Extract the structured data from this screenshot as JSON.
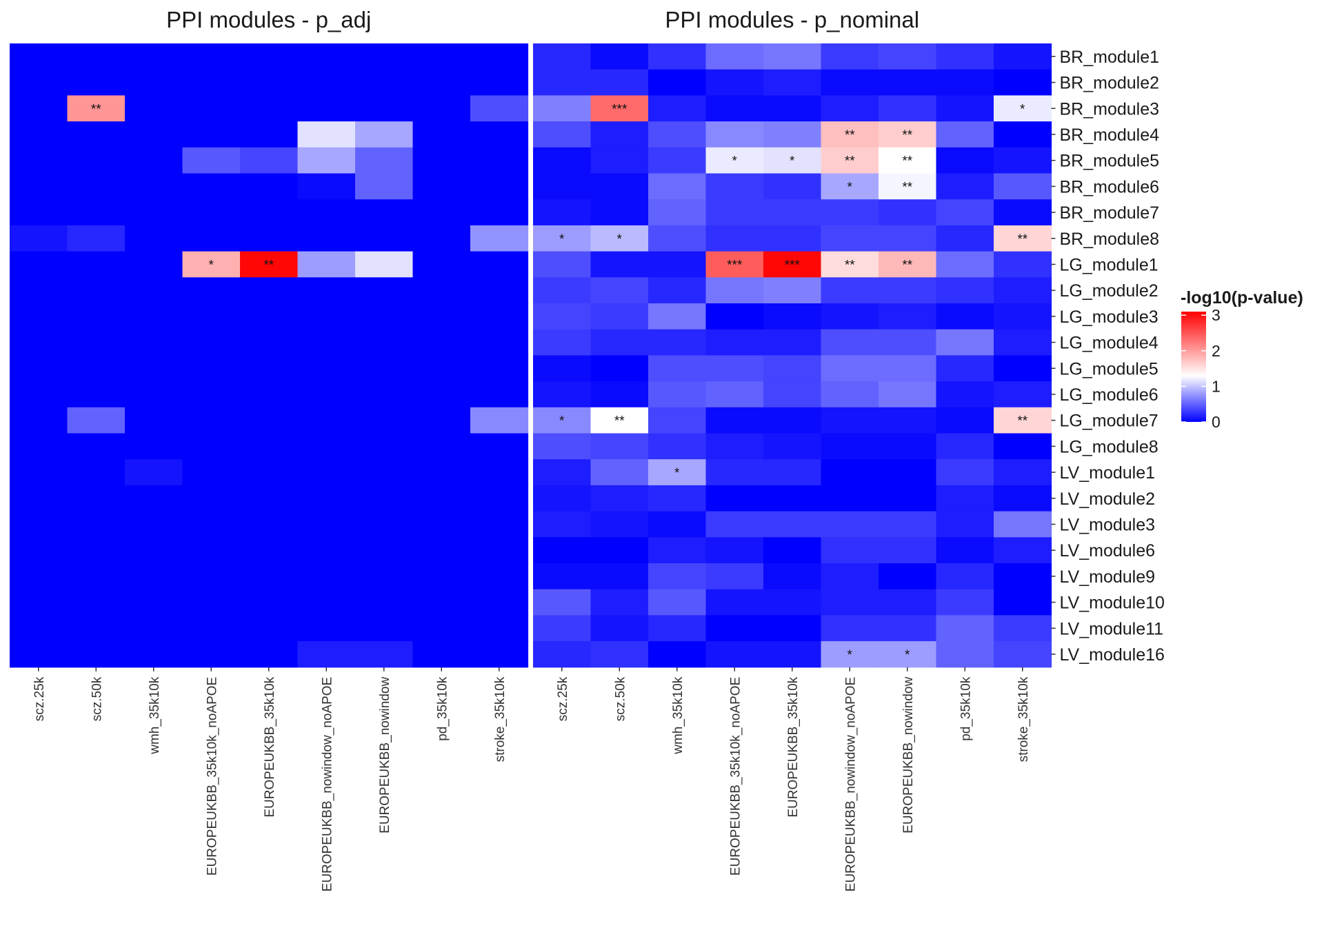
{
  "chart_data": {
    "type": "heatmap",
    "rows": [
      "BR_module1",
      "BR_module2",
      "BR_module3",
      "BR_module4",
      "BR_module5",
      "BR_module6",
      "BR_module7",
      "BR_module8",
      "LG_module1",
      "LG_module2",
      "LG_module3",
      "LG_module4",
      "LG_module5",
      "LG_module6",
      "LG_module7",
      "LG_module8",
      "LV_module1",
      "LV_module2",
      "LV_module3",
      "LV_module6",
      "LV_module9",
      "LV_module10",
      "LV_module11",
      "LV_module16"
    ],
    "columns": [
      "scz.25k",
      "scz.50k",
      "wmh_35k10k",
      "EUROPEUKBB_35k10k_noAPOE",
      "EUROPEUKBB_35k10k",
      "EUROPEUKBB_nowindow_noAPOE",
      "EUROPEUKBB_nowindow",
      "pd_35k10k",
      "stroke_35k10k"
    ],
    "legend": {
      "title": "-log10(p-value)",
      "ticks": [
        "0",
        "1",
        "2",
        "3"
      ],
      "min": 0,
      "max": 3.1,
      "mid": 1.3,
      "low_color": "#0000ff",
      "mid_color": "#ffffff",
      "high_color": "#ff0000"
    },
    "panels": [
      {
        "title": "PPI modules - p_adj",
        "values": [
          [
            0,
            0,
            0,
            0,
            0,
            0,
            0,
            0,
            0
          ],
          [
            0,
            0,
            0,
            0,
            0,
            0,
            0,
            0,
            0
          ],
          [
            0,
            2.05,
            0,
            0,
            0,
            0,
            0,
            0,
            0.4
          ],
          [
            0,
            0,
            0,
            0,
            0,
            1.15,
            0.85,
            0,
            0
          ],
          [
            0,
            0,
            0,
            0.45,
            0.35,
            0.85,
            0.5,
            0,
            0
          ],
          [
            0,
            0,
            0,
            0,
            0,
            0.05,
            0.5,
            0,
            0
          ],
          [
            0,
            0,
            0,
            0,
            0,
            0,
            0,
            0,
            0
          ],
          [
            0.1,
            0.2,
            0,
            0,
            0,
            0,
            0,
            0,
            0.75
          ],
          [
            0,
            0,
            0,
            1.85,
            3.05,
            0.8,
            1.15,
            0,
            0
          ],
          [
            0,
            0,
            0,
            0,
            0,
            0,
            0,
            0,
            0
          ],
          [
            0,
            0,
            0,
            0,
            0,
            0,
            0,
            0,
            0
          ],
          [
            0,
            0,
            0,
            0,
            0,
            0,
            0,
            0,
            0
          ],
          [
            0,
            0,
            0,
            0,
            0,
            0,
            0,
            0,
            0
          ],
          [
            0,
            0,
            0,
            0,
            0,
            0,
            0,
            0,
            0
          ],
          [
            0,
            0.5,
            0,
            0,
            0,
            0,
            0,
            0,
            0.7
          ],
          [
            0,
            0,
            0,
            0,
            0,
            0,
            0,
            0,
            0
          ],
          [
            0,
            0,
            0.1,
            0,
            0,
            0,
            0,
            0,
            0
          ],
          [
            0,
            0,
            0,
            0,
            0,
            0,
            0,
            0,
            0
          ],
          [
            0,
            0,
            0,
            0,
            0,
            0,
            0,
            0,
            0
          ],
          [
            0,
            0,
            0,
            0,
            0,
            0,
            0,
            0,
            0
          ],
          [
            0,
            0,
            0,
            0,
            0,
            0,
            0,
            0,
            0
          ],
          [
            0,
            0,
            0,
            0,
            0,
            0,
            0,
            0,
            0
          ],
          [
            0,
            0,
            0,
            0,
            0,
            0,
            0,
            0,
            0
          ],
          [
            0,
            0,
            0,
            0,
            0,
            0.15,
            0.15,
            0,
            0
          ]
        ],
        "stars": [
          [
            "",
            "",
            "",
            "",
            "",
            "",
            "",
            "",
            ""
          ],
          [
            "",
            "",
            "",
            "",
            "",
            "",
            "",
            "",
            ""
          ],
          [
            "",
            "**",
            "",
            "",
            "",
            "",
            "",
            "",
            ""
          ],
          [
            "",
            "",
            "",
            "",
            "",
            "",
            "",
            "",
            ""
          ],
          [
            "",
            "",
            "",
            "",
            "",
            "",
            "",
            "",
            ""
          ],
          [
            "",
            "",
            "",
            "",
            "",
            "",
            "",
            "",
            ""
          ],
          [
            "",
            "",
            "",
            "",
            "",
            "",
            "",
            "",
            ""
          ],
          [
            "",
            "",
            "",
            "",
            "",
            "",
            "",
            "",
            ""
          ],
          [
            "",
            "",
            "",
            "*",
            "**",
            "",
            "",
            "",
            ""
          ],
          [
            "",
            "",
            "",
            "",
            "",
            "",
            "",
            "",
            ""
          ],
          [
            "",
            "",
            "",
            "",
            "",
            "",
            "",
            "",
            ""
          ],
          [
            "",
            "",
            "",
            "",
            "",
            "",
            "",
            "",
            ""
          ],
          [
            "",
            "",
            "",
            "",
            "",
            "",
            "",
            "",
            ""
          ],
          [
            "",
            "",
            "",
            "",
            "",
            "",
            "",
            "",
            ""
          ],
          [
            "",
            "",
            "",
            "",
            "",
            "",
            "",
            "",
            ""
          ],
          [
            "",
            "",
            "",
            "",
            "",
            "",
            "",
            "",
            ""
          ],
          [
            "",
            "",
            "",
            "",
            "",
            "",
            "",
            "",
            ""
          ],
          [
            "",
            "",
            "",
            "",
            "",
            "",
            "",
            "",
            ""
          ],
          [
            "",
            "",
            "",
            "",
            "",
            "",
            "",
            "",
            ""
          ],
          [
            "",
            "",
            "",
            "",
            "",
            "",
            "",
            "",
            ""
          ],
          [
            "",
            "",
            "",
            "",
            "",
            "",
            "",
            "",
            ""
          ],
          [
            "",
            "",
            "",
            "",
            "",
            "",
            "",
            "",
            ""
          ],
          [
            "",
            "",
            "",
            "",
            "",
            "",
            "",
            "",
            ""
          ],
          [
            "",
            "",
            "",
            "",
            "",
            "",
            "",
            "",
            ""
          ]
        ]
      },
      {
        "title": "PPI modules - p_nominal",
        "values": [
          [
            0.2,
            0.05,
            0.25,
            0.55,
            0.6,
            0.3,
            0.35,
            0.25,
            0.1
          ],
          [
            0.2,
            0.2,
            0,
            0.1,
            0.15,
            0.05,
            0.05,
            0.05,
            0
          ],
          [
            0.65,
            2.35,
            0.15,
            0.05,
            0.05,
            0.15,
            0.25,
            0.1,
            1.2
          ],
          [
            0.4,
            0.15,
            0.4,
            0.7,
            0.65,
            1.75,
            1.65,
            0.5,
            0
          ],
          [
            0.05,
            0.15,
            0.3,
            1.2,
            1.15,
            1.65,
            1.3,
            0.05,
            0.1
          ],
          [
            0.05,
            0.05,
            0.55,
            0.3,
            0.25,
            0.85,
            1.25,
            0.15,
            0.45
          ],
          [
            0.1,
            0.05,
            0.5,
            0.3,
            0.3,
            0.3,
            0.25,
            0.35,
            0.05
          ],
          [
            0.8,
            0.95,
            0.4,
            0.25,
            0.25,
            0.35,
            0.35,
            0.2,
            1.6
          ],
          [
            0.4,
            0.1,
            0.1,
            2.45,
            3.05,
            1.55,
            1.8,
            0.55,
            0.25
          ],
          [
            0.3,
            0.35,
            0.2,
            0.6,
            0.65,
            0.3,
            0.3,
            0.25,
            0.15
          ],
          [
            0.35,
            0.3,
            0.6,
            0,
            0.05,
            0.1,
            0.15,
            0.05,
            0.1
          ],
          [
            0.3,
            0.2,
            0.2,
            0.15,
            0.15,
            0.4,
            0.4,
            0.6,
            0.15
          ],
          [
            0.05,
            0,
            0.4,
            0.4,
            0.35,
            0.55,
            0.55,
            0.2,
            0
          ],
          [
            0.1,
            0.05,
            0.45,
            0.5,
            0.35,
            0.5,
            0.6,
            0.1,
            0.15
          ],
          [
            0.7,
            1.3,
            0.35,
            0.05,
            0.05,
            0.1,
            0.1,
            0.05,
            1.6
          ],
          [
            0.4,
            0.35,
            0.25,
            0.15,
            0.1,
            0.05,
            0.05,
            0.2,
            0
          ],
          [
            0.15,
            0.5,
            0.85,
            0.2,
            0.2,
            0,
            0,
            0.3,
            0.15
          ],
          [
            0.1,
            0.15,
            0.2,
            0,
            0,
            0,
            0,
            0.15,
            0.05
          ],
          [
            0.15,
            0.1,
            0.05,
            0.3,
            0.3,
            0.3,
            0.3,
            0.15,
            0.6
          ],
          [
            0,
            0,
            0.15,
            0.1,
            0,
            0.25,
            0.25,
            0.05,
            0.15
          ],
          [
            0.05,
            0.05,
            0.35,
            0.3,
            0.05,
            0.15,
            0,
            0.2,
            0
          ],
          [
            0.45,
            0.15,
            0.45,
            0.1,
            0.1,
            0.15,
            0.15,
            0.3,
            0
          ],
          [
            0.3,
            0.1,
            0.2,
            0,
            0,
            0.25,
            0.25,
            0.5,
            0.3
          ],
          [
            0.2,
            0.25,
            0,
            0.1,
            0.1,
            0.8,
            0.8,
            0.5,
            0.35
          ]
        ],
        "stars": [
          [
            "",
            "",
            "",
            "",
            "",
            "",
            "",
            "",
            ""
          ],
          [
            "",
            "",
            "",
            "",
            "",
            "",
            "",
            "",
            ""
          ],
          [
            "",
            "***",
            "",
            "",
            "",
            "",
            "",
            "",
            "*"
          ],
          [
            "",
            "",
            "",
            "",
            "",
            "**",
            "**",
            "",
            ""
          ],
          [
            "",
            "",
            "",
            "*",
            "*",
            "**",
            "**",
            "",
            ""
          ],
          [
            "",
            "",
            "",
            "",
            "",
            "*",
            "**",
            "",
            ""
          ],
          [
            "",
            "",
            "",
            "",
            "",
            "",
            "",
            "",
            ""
          ],
          [
            "*",
            "*",
            "",
            "",
            "",
            "",
            "",
            "",
            "**"
          ],
          [
            "",
            "",
            "",
            "***",
            "***",
            "**",
            "**",
            "",
            ""
          ],
          [
            "",
            "",
            "",
            "",
            "",
            "",
            "",
            "",
            ""
          ],
          [
            "",
            "",
            "",
            "",
            "",
            "",
            "",
            "",
            ""
          ],
          [
            "",
            "",
            "",
            "",
            "",
            "",
            "",
            "",
            ""
          ],
          [
            "",
            "",
            "",
            "",
            "",
            "",
            "",
            "",
            ""
          ],
          [
            "",
            "",
            "",
            "",
            "",
            "",
            "",
            "",
            ""
          ],
          [
            "*",
            "**",
            "",
            "",
            "",
            "",
            "",
            "",
            "**"
          ],
          [
            "",
            "",
            "",
            "",
            "",
            "",
            "",
            "",
            ""
          ],
          [
            "",
            "",
            "*",
            "",
            "",
            "",
            "",
            "",
            ""
          ],
          [
            "",
            "",
            "",
            "",
            "",
            "",
            "",
            "",
            ""
          ],
          [
            "",
            "",
            "",
            "",
            "",
            "",
            "",
            "",
            ""
          ],
          [
            "",
            "",
            "",
            "",
            "",
            "",
            "",
            "",
            ""
          ],
          [
            "",
            "",
            "",
            "",
            "",
            "",
            "",
            "",
            ""
          ],
          [
            "",
            "",
            "",
            "",
            "",
            "",
            "",
            "",
            ""
          ],
          [
            "",
            "",
            "",
            "",
            "",
            "",
            "",
            "",
            ""
          ],
          [
            "",
            "",
            "",
            "",
            "",
            "*",
            "*",
            "",
            ""
          ]
        ]
      }
    ]
  }
}
